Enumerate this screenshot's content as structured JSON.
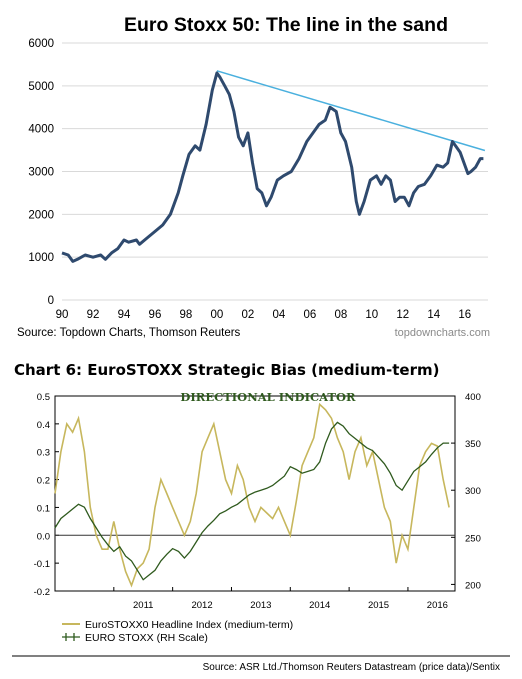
{
  "chart_data": [
    {
      "type": "line",
      "title": "Euro Stoxx 50: The line in the sand",
      "source": "Source: Topdown Charts, Thomson Reuters",
      "watermark": "topdowncharts.com",
      "x_tick_labels": [
        "90",
        "92",
        "94",
        "96",
        "98",
        "00",
        "02",
        "04",
        "06",
        "08",
        "10",
        "12",
        "14",
        "16"
      ],
      "y_tick_labels": [
        "0",
        "1000",
        "2000",
        "3000",
        "4000",
        "5000",
        "6000"
      ],
      "xlim": [
        1990,
        2017.5
      ],
      "ylim": [
        0,
        6000
      ],
      "grid": true,
      "colors": {
        "series": "#2f4a6e",
        "trendline": "#4ab0de"
      },
      "series": [
        {
          "name": "",
          "x": [
            1990.0,
            1990.4,
            1990.7,
            1991.0,
            1991.5,
            1992.0,
            1992.5,
            1992.8,
            1993.2,
            1993.6,
            1994.0,
            1994.3,
            1994.8,
            1995.0,
            1995.5,
            1996.0,
            1996.5,
            1997.0,
            1997.5,
            1997.8,
            1998.2,
            1998.6,
            1998.9,
            1999.3,
            1999.7,
            2000.0,
            2000.2,
            2000.5,
            2000.8,
            2001.1,
            2001.4,
            2001.7,
            2002.0,
            2002.3,
            2002.6,
            2002.9,
            2003.2,
            2003.5,
            2003.9,
            2004.3,
            2004.8,
            2005.3,
            2005.8,
            2006.2,
            2006.6,
            2007.0,
            2007.3,
            2007.7,
            2008.0,
            2008.3,
            2008.7,
            2009.0,
            2009.2,
            2009.5,
            2009.9,
            2010.3,
            2010.6,
            2010.9,
            2011.2,
            2011.5,
            2011.8,
            2012.1,
            2012.4,
            2012.7,
            2013.0,
            2013.4,
            2013.8,
            2014.2,
            2014.6,
            2014.9,
            2015.2,
            2015.4,
            2015.7,
            2016.0,
            2016.2,
            2016.4,
            2016.7,
            2017.0,
            2017.2
          ],
          "values": [
            1100,
            1050,
            900,
            950,
            1050,
            1000,
            1050,
            950,
            1100,
            1200,
            1400,
            1350,
            1400,
            1300,
            1450,
            1600,
            1750,
            2000,
            2500,
            2900,
            3400,
            3600,
            3500,
            4100,
            4900,
            5300,
            5200,
            5000,
            4800,
            4400,
            3800,
            3600,
            3900,
            3200,
            2600,
            2500,
            2200,
            2400,
            2800,
            2900,
            3000,
            3300,
            3700,
            3900,
            4100,
            4200,
            4500,
            4400,
            3900,
            3700,
            3100,
            2300,
            2000,
            2300,
            2800,
            2900,
            2700,
            2900,
            2800,
            2300,
            2400,
            2400,
            2200,
            2500,
            2650,
            2700,
            2900,
            3150,
            3100,
            3200,
            3700,
            3600,
            3450,
            3150,
            2950,
            3000,
            3100,
            3300,
            3300
          ]
        }
      ],
      "annotations": [
        {
          "type": "trendline",
          "x": [
            2000.0,
            2017.3
          ],
          "y": [
            5350,
            3490
          ]
        }
      ]
    },
    {
      "type": "line",
      "title": "DIRECTIONAL INDICATOR",
      "source": "Source: ASR Ltd./Thomson Reuters Datastream (price data)/Sentix",
      "x_tick_labels": [
        "2011",
        "2012",
        "2013",
        "2014",
        "2015",
        "2016"
      ],
      "y_tick_labels_left": [
        "0.5",
        "0.4",
        "0.3",
        "0.2",
        "0.1",
        "0.0",
        "-0.1",
        "-0.2"
      ],
      "y_tick_labels_right": [
        "400",
        "350",
        "300",
        "250",
        "200"
      ],
      "xlim": [
        2010.0,
        2016.8
      ],
      "ylim_left": [
        -0.2,
        0.5
      ],
      "ylim_right": [
        193,
        400
      ],
      "grid": false,
      "legend_position": "bottom-left",
      "colors": {
        "headline": "#c7b75d",
        "eurostoxx": "#2f5a1e"
      },
      "series": [
        {
          "name": "EuroSTOXX0 Headline Index (medium-term)",
          "axis": "left",
          "x": [
            2010.0,
            2010.1,
            2010.2,
            2010.3,
            2010.4,
            2010.5,
            2010.6,
            2010.7,
            2010.8,
            2010.9,
            2011.0,
            2011.1,
            2011.2,
            2011.3,
            2011.4,
            2011.5,
            2011.6,
            2011.7,
            2011.8,
            2011.9,
            2012.0,
            2012.1,
            2012.2,
            2012.3,
            2012.4,
            2012.5,
            2012.6,
            2012.7,
            2012.8,
            2012.9,
            2013.0,
            2013.1,
            2013.2,
            2013.3,
            2013.4,
            2013.5,
            2013.6,
            2013.7,
            2013.8,
            2013.9,
            2014.0,
            2014.1,
            2014.2,
            2014.3,
            2014.4,
            2014.5,
            2014.6,
            2014.7,
            2014.8,
            2014.9,
            2015.0,
            2015.1,
            2015.2,
            2015.3,
            2015.4,
            2015.5,
            2015.6,
            2015.7,
            2015.8,
            2015.9,
            2016.0,
            2016.1,
            2016.2,
            2016.3,
            2016.4,
            2016.5,
            2016.6,
            2016.7
          ],
          "values": [
            0.15,
            0.3,
            0.4,
            0.37,
            0.42,
            0.3,
            0.1,
            0.0,
            -0.05,
            -0.05,
            0.05,
            -0.05,
            -0.13,
            -0.18,
            -0.12,
            -0.1,
            -0.05,
            0.1,
            0.2,
            0.15,
            0.1,
            0.05,
            0.0,
            0.05,
            0.15,
            0.3,
            0.35,
            0.4,
            0.3,
            0.2,
            0.15,
            0.25,
            0.2,
            0.1,
            0.05,
            0.1,
            0.08,
            0.06,
            0.1,
            0.05,
            0.0,
            0.12,
            0.25,
            0.3,
            0.35,
            0.47,
            0.45,
            0.42,
            0.35,
            0.3,
            0.2,
            0.3,
            0.35,
            0.25,
            0.3,
            0.2,
            0.1,
            0.05,
            -0.1,
            0.0,
            -0.05,
            0.1,
            0.25,
            0.3,
            0.33,
            0.32,
            0.2,
            0.1
          ]
        },
        {
          "name": "EURO STOXX (RH Scale)",
          "axis": "right",
          "x": [
            2010.0,
            2010.1,
            2010.2,
            2010.3,
            2010.4,
            2010.5,
            2010.6,
            2010.7,
            2010.8,
            2010.9,
            2011.0,
            2011.1,
            2011.2,
            2011.3,
            2011.4,
            2011.5,
            2011.6,
            2011.7,
            2011.8,
            2011.9,
            2012.0,
            2012.1,
            2012.2,
            2012.3,
            2012.4,
            2012.5,
            2012.6,
            2012.7,
            2012.8,
            2012.9,
            2013.0,
            2013.1,
            2013.2,
            2013.3,
            2013.4,
            2013.5,
            2013.6,
            2013.7,
            2013.8,
            2013.9,
            2014.0,
            2014.1,
            2014.2,
            2014.3,
            2014.4,
            2014.5,
            2014.6,
            2014.7,
            2014.8,
            2014.9,
            2015.0,
            2015.1,
            2015.2,
            2015.3,
            2015.4,
            2015.5,
            2015.6,
            2015.7,
            2015.8,
            2015.9,
            2016.0,
            2016.1,
            2016.2,
            2016.3,
            2016.4,
            2016.5,
            2016.6,
            2016.7
          ],
          "values": [
            260,
            270,
            275,
            280,
            285,
            282,
            270,
            260,
            250,
            242,
            235,
            240,
            230,
            225,
            215,
            205,
            210,
            215,
            225,
            232,
            238,
            235,
            228,
            235,
            245,
            255,
            262,
            268,
            275,
            278,
            282,
            285,
            290,
            295,
            298,
            300,
            302,
            305,
            310,
            315,
            325,
            322,
            318,
            320,
            322,
            330,
            350,
            365,
            372,
            368,
            360,
            355,
            350,
            345,
            342,
            335,
            328,
            318,
            305,
            300,
            310,
            320,
            325,
            330,
            338,
            345,
            350,
            350
          ]
        }
      ],
      "annotations": [
        {
          "type": "hline",
          "y": 0.0
        }
      ]
    }
  ]
}
